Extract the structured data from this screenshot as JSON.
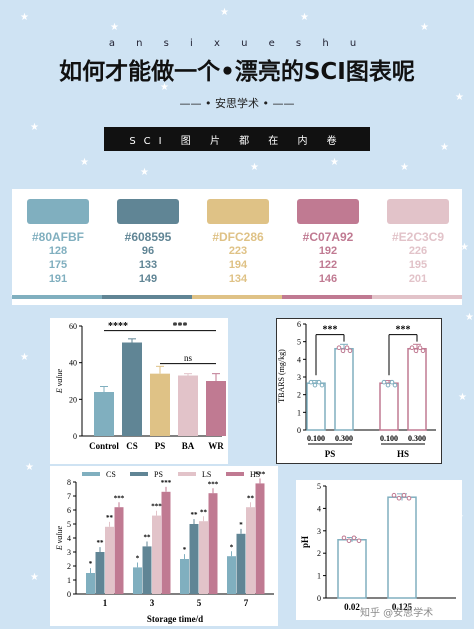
{
  "header": {
    "top_label": "a n s i x u e s h u",
    "title": "如何才能做一个•漂亮的SCI图表呢",
    "brand": "—— • 安思学术 • ——",
    "banner": "SCI 图 片 都 在 内 卷"
  },
  "palette": [
    {
      "hex": "#80AFBF",
      "r": "128",
      "g": "175",
      "b": "191",
      "color": "#80afbf"
    },
    {
      "hex": "#608595",
      "r": "96",
      "g": "133",
      "b": "149",
      "color": "#608595"
    },
    {
      "hex": "#DFC286",
      "r": "223",
      "g": "194",
      "b": "134",
      "color": "#dfc286"
    },
    {
      "hex": "#C07A92",
      "r": "192",
      "g": "122",
      "b": "146",
      "color": "#c07a92"
    },
    {
      "hex": "#E2C3C9",
      "r": "226",
      "g": "195",
      "b": "201",
      "color": "#e2c3c9"
    }
  ],
  "watermark": "知乎 @安思学术",
  "chart_data": [
    {
      "type": "bar",
      "categories": [
        "Control",
        "CS",
        "PS",
        "BA",
        "WR"
      ],
      "values": [
        24,
        51,
        34,
        33,
        30
      ],
      "errors": [
        3,
        2,
        4,
        1,
        4
      ],
      "colors": [
        "#80afbf",
        "#608595",
        "#dfc286",
        "#e2c3c9",
        "#c07a92"
      ],
      "ylabel": "E value",
      "ylim": [
        0,
        60
      ],
      "yticks": [
        0,
        20,
        40,
        60
      ],
      "annotations": [
        "****",
        "***",
        "ns"
      ]
    },
    {
      "type": "bar",
      "groups": [
        "PS",
        "HS"
      ],
      "categories": [
        "0.100",
        "0.300",
        "0.100",
        "0.300"
      ],
      "values": [
        2.65,
        4.6,
        2.65,
        4.6
      ],
      "errors": [
        0.15,
        0.25,
        0.15,
        0.25
      ],
      "colors": [
        "#80afbf",
        "#80afbf",
        "#c07a92",
        "#c07a92"
      ],
      "ylabel": "TBARS (mg/kg)",
      "ylim": [
        0,
        6
      ],
      "yticks": [
        0,
        1,
        2,
        3,
        4,
        5,
        6
      ],
      "annotations": [
        "***",
        "***"
      ]
    },
    {
      "type": "bar",
      "xlabel": "Storage time/d",
      "ylabel": "E value",
      "categories": [
        "1",
        "3",
        "5",
        "7"
      ],
      "series": [
        {
          "name": "CS",
          "values": [
            1.5,
            1.9,
            2.5,
            2.7
          ],
          "color": "#80afbf"
        },
        {
          "name": "PS",
          "values": [
            3.0,
            3.4,
            5.0,
            4.3
          ],
          "color": "#608595"
        },
        {
          "name": "LS",
          "values": [
            4.8,
            5.6,
            5.2,
            6.2
          ],
          "color": "#e2c3c9"
        },
        {
          "name": "HS",
          "values": [
            6.2,
            7.3,
            7.2,
            7.9
          ],
          "color": "#c07a92"
        }
      ],
      "stars": [
        [
          "*",
          "**",
          "**",
          "***"
        ],
        [
          "*",
          "**",
          "***",
          "***"
        ],
        [
          "*",
          "**",
          "**",
          "***"
        ],
        [
          "*",
          "*",
          "**",
          "***"
        ]
      ],
      "ylim": [
        0,
        8
      ],
      "yticks": [
        0,
        1,
        2,
        3,
        4,
        5,
        6,
        7,
        8
      ]
    },
    {
      "type": "bar",
      "categories": [
        "0.02",
        "0.125"
      ],
      "values": [
        2.6,
        4.5
      ],
      "errors": [
        0.1,
        0.15
      ],
      "color": "#80afbf",
      "ylabel": "pH",
      "ylim": [
        0,
        5
      ],
      "yticks": [
        0,
        1,
        2,
        3,
        4,
        5
      ]
    }
  ]
}
